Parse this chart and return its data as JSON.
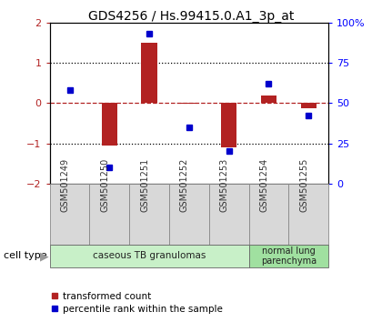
{
  "title": "GDS4256 / Hs.99415.0.A1_3p_at",
  "samples": [
    "GSM501249",
    "GSM501250",
    "GSM501251",
    "GSM501252",
    "GSM501253",
    "GSM501254",
    "GSM501255"
  ],
  "transformed_counts": [
    0.0,
    -1.05,
    1.5,
    -0.02,
    -1.1,
    0.18,
    -0.12
  ],
  "percentile_rank_pct": [
    58,
    10,
    93,
    35,
    20,
    62,
    42
  ],
  "cell_types": [
    {
      "label": "caseous TB granulomas",
      "n_samples": 5,
      "color": "#c8f0c8"
    },
    {
      "label": "normal lung\nparenchyma",
      "n_samples": 2,
      "color": "#a0e0a0"
    }
  ],
  "bar_color": "#b22222",
  "dot_color": "#0000cc",
  "ylim": [
    -2,
    2
  ],
  "y_left_ticks": [
    -2,
    -1,
    0,
    1,
    2
  ],
  "y_right_ticks": [
    0,
    25,
    50,
    75,
    100
  ],
  "y_right_labels": [
    "0",
    "25",
    "50",
    "75",
    "100%"
  ],
  "dotline_y": [
    1,
    -1
  ],
  "bar_width": 0.4
}
